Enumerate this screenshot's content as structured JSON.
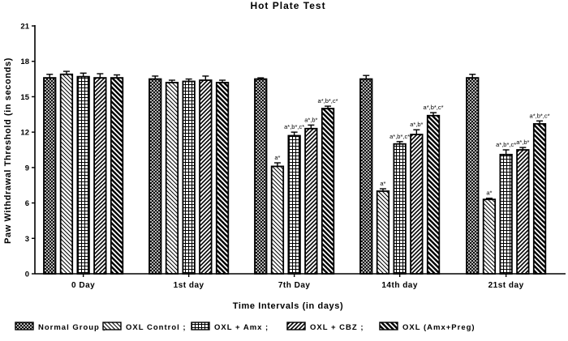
{
  "chart_data": {
    "type": "bar",
    "title": "Hot Plate Test",
    "xlabel": "Time Intervals (in days)",
    "ylabel": "Paw Withdrawal Threshold (in seconds)",
    "ylim": [
      0,
      21
    ],
    "yticks": [
      0,
      3,
      6,
      9,
      12,
      15,
      18,
      21
    ],
    "categories": [
      "0 Day",
      "1st day",
      "7th Day",
      "14th day",
      "21st day"
    ],
    "legend_position": "bottom",
    "series": [
      {
        "name": "Normal Group ;",
        "pattern": "crosshatch",
        "values": [
          16.6,
          16.5,
          16.5,
          16.5,
          16.6
        ],
        "errors": [
          0.3,
          0.25,
          0.1,
          0.3,
          0.3
        ],
        "annotations": [
          "",
          "",
          "",
          "",
          ""
        ]
      },
      {
        "name": "OXL Control ;",
        "pattern": "hatch-back",
        "values": [
          16.9,
          16.2,
          9.1,
          7.0,
          6.3
        ],
        "errors": [
          0.25,
          0.2,
          0.3,
          0.2,
          0.1
        ],
        "annotations": [
          "",
          "",
          "a*",
          "a*",
          "a*"
        ]
      },
      {
        "name": "OXL + Amx ;",
        "pattern": "grid",
        "values": [
          16.7,
          16.3,
          11.7,
          11.0,
          10.1
        ],
        "errors": [
          0.3,
          0.2,
          0.3,
          0.2,
          0.4
        ],
        "annotations": [
          "",
          "",
          "a*,b*,c*",
          "a*,b*,c*",
          "a*,b*,c*"
        ]
      },
      {
        "name": "OXL + CBZ ;",
        "pattern": "hatch-fwd",
        "values": [
          16.6,
          16.4,
          12.3,
          11.8,
          10.5
        ],
        "errors": [
          0.35,
          0.35,
          0.3,
          0.4,
          0.2
        ],
        "annotations": [
          "",
          "",
          "a*,b*",
          "a*,b*",
          "a*,b*"
        ]
      },
      {
        "name": "OXL (Amx+Preg)",
        "pattern": "hatch-back-thick",
        "values": [
          16.6,
          16.2,
          14.0,
          13.4,
          12.7
        ],
        "errors": [
          0.25,
          0.2,
          0.2,
          0.25,
          0.25
        ],
        "annotations": [
          "",
          "",
          "a*,b*,c*",
          "a*,b*,c*",
          "a*,b*,c*"
        ]
      }
    ]
  }
}
